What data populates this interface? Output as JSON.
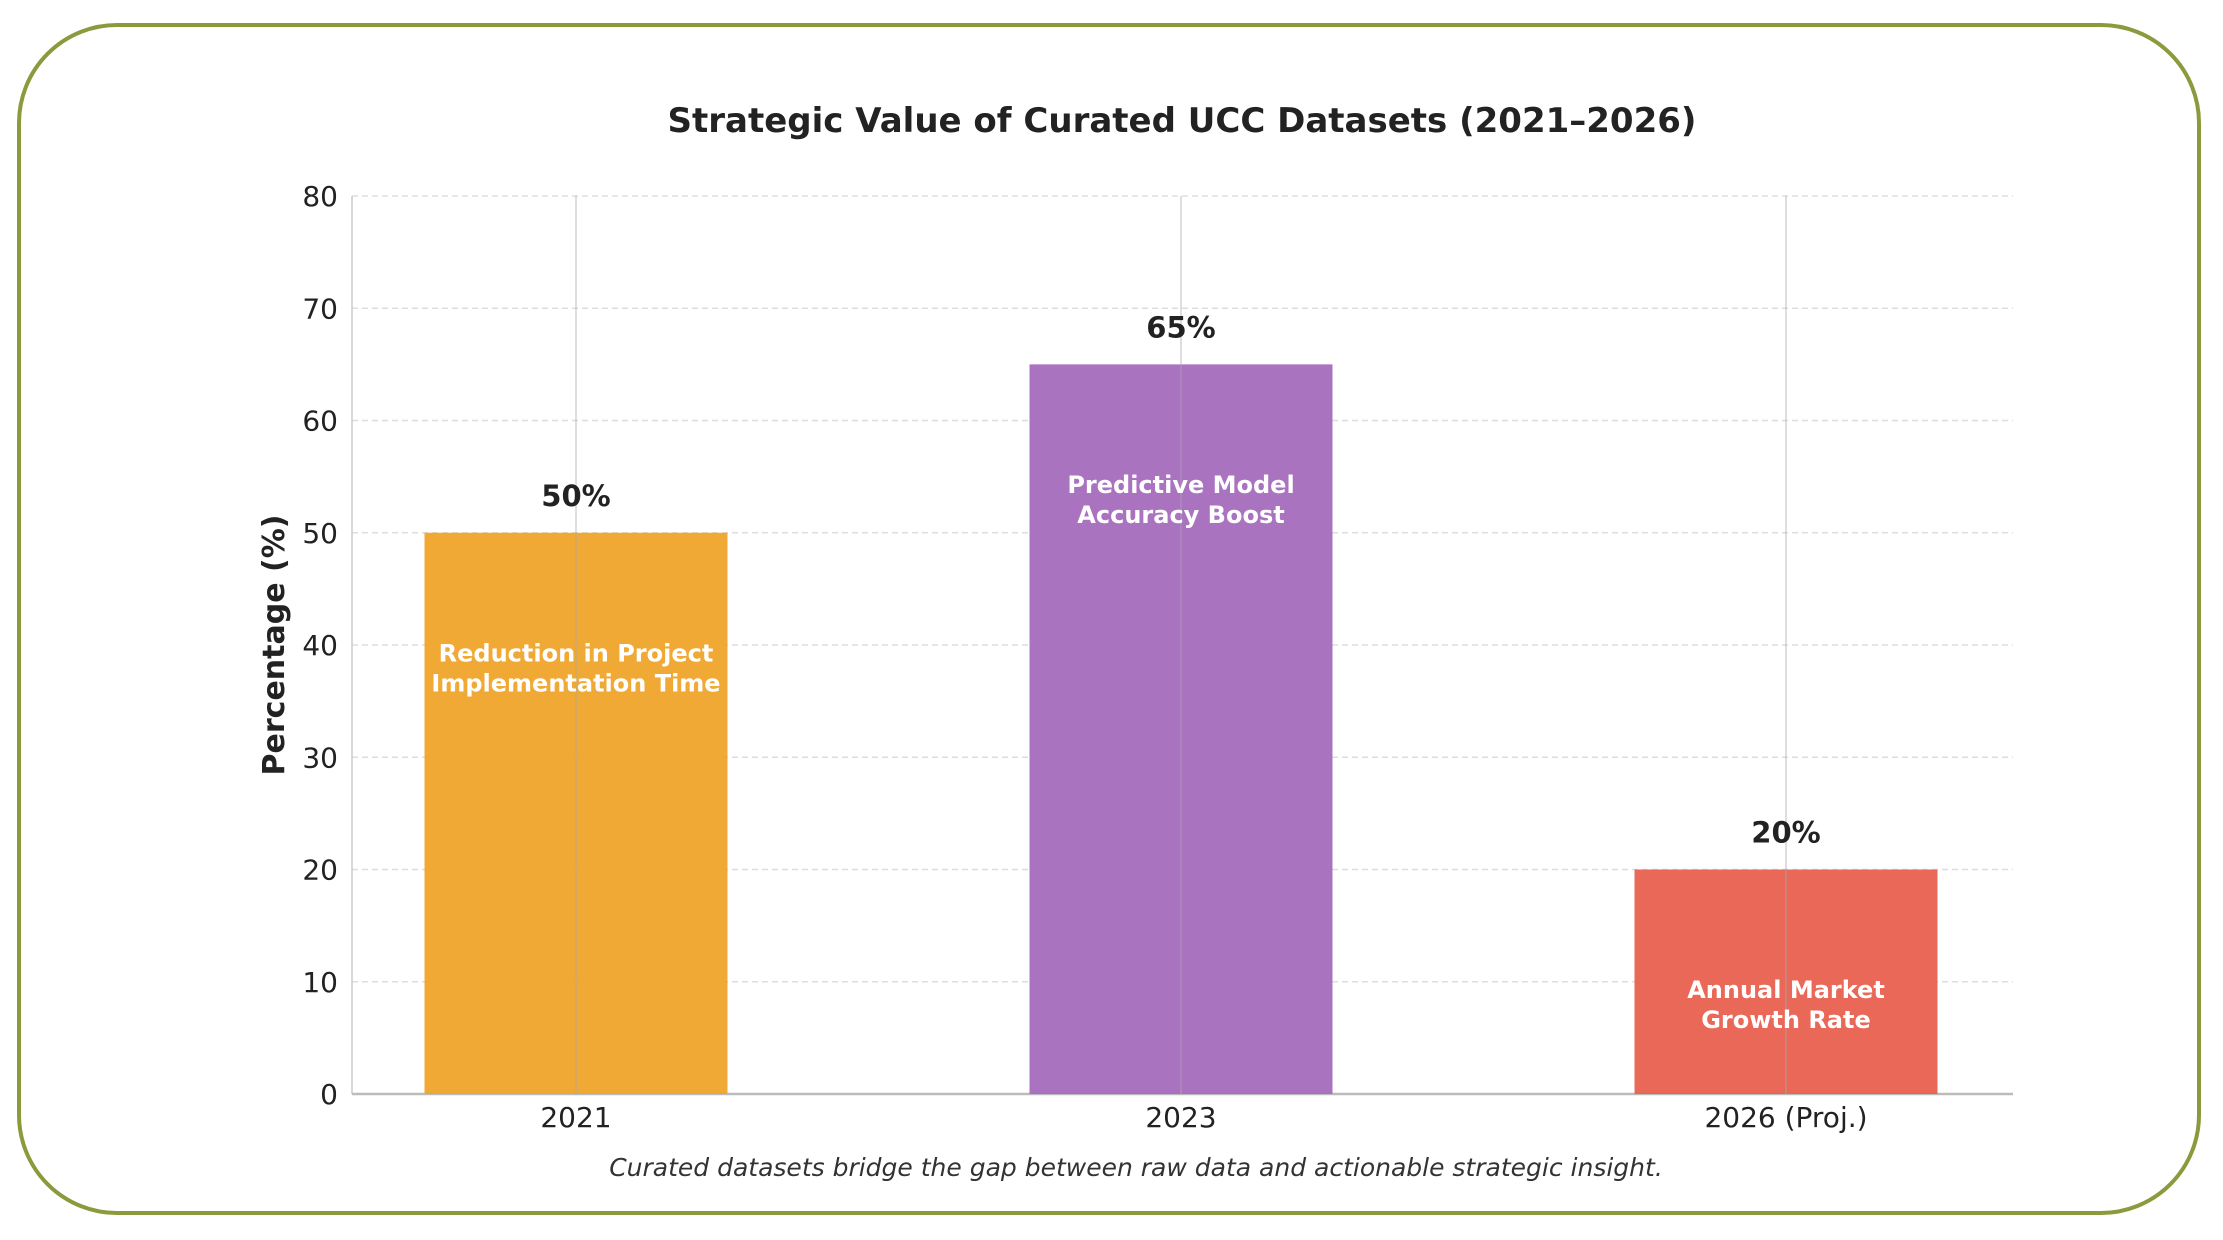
{
  "chart_data": {
    "type": "bar",
    "title": "Strategic Value of Curated UCC Datasets (2021–2026)",
    "xlabel": "",
    "ylabel": "Percentage (%)",
    "ylim": [
      0,
      80
    ],
    "yticks": [
      0,
      10,
      20,
      30,
      40,
      50,
      60,
      70,
      80
    ],
    "grid": true,
    "categories": [
      "2021",
      "2023",
      "2026 (Proj.)"
    ],
    "values": [
      50,
      65,
      20
    ],
    "data_labels": [
      "50%",
      "65%",
      "20%"
    ],
    "bar_labels": [
      [
        "Reduction in Project",
        "Implementation Time"
      ],
      [
        "Predictive Model",
        "Accuracy Boost"
      ],
      [
        "Annual Market",
        "Growth Rate"
      ]
    ],
    "colors": [
      "#f0a42a",
      "#a56cbd",
      "#e8604f"
    ],
    "caption": "Curated datasets bridge the gap between raw data and actionable strategic insight."
  },
  "frame_color": "#8a9a3c"
}
